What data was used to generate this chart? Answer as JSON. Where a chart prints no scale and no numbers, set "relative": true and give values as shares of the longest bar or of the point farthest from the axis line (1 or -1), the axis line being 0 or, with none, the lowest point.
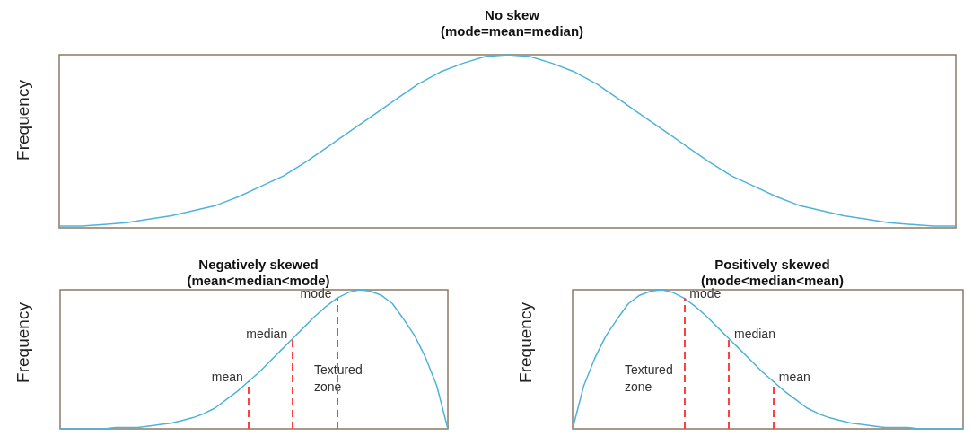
{
  "chart_data": [
    {
      "type": "line",
      "title": "No skew",
      "subtitle": "(mode=mean=median)",
      "ylabel": "Frequency",
      "relative": true,
      "marker": "none",
      "line_style": "solid",
      "categories": [
        null,
        null,
        null,
        null,
        null,
        null,
        null,
        null,
        null,
        null,
        null,
        null,
        null,
        null,
        null,
        null,
        null,
        null,
        null,
        null,
        null,
        null,
        null,
        null,
        null,
        null,
        null,
        null,
        null,
        null,
        null,
        null,
        null,
        null,
        null,
        null,
        null,
        null,
        null,
        null,
        null
      ],
      "series": [
        {
          "color": "#4fb3d9",
          "values": [
            0.01,
            0.01,
            0.02,
            0.03,
            0.05,
            0.07,
            0.1,
            0.13,
            0.18,
            0.24,
            0.3,
            0.38,
            0.47,
            0.56,
            0.65,
            0.74,
            0.83,
            0.9,
            0.95,
            0.99,
            1.0,
            0.99,
            0.95,
            0.9,
            0.83,
            0.74,
            0.65,
            0.56,
            0.47,
            0.38,
            0.3,
            0.24,
            0.18,
            0.13,
            0.1,
            0.07,
            0.05,
            0.03,
            0.02,
            0.01,
            0.01
          ]
        }
      ]
    },
    {
      "type": "line",
      "title": "Negatively skewed",
      "subtitle": "(mean<median<mode)",
      "ylabel": "Frequency",
      "relative": true,
      "marker": "none",
      "line_style": "solid",
      "categories": [
        null,
        null,
        null,
        null,
        null,
        null,
        null,
        null,
        null,
        null,
        null,
        null,
        null,
        null,
        null,
        null,
        null,
        null,
        null,
        null,
        null,
        null,
        null,
        null,
        null,
        null,
        null,
        null,
        null,
        null,
        null,
        null,
        null,
        null,
        null,
        null
      ],
      "series": [
        {
          "color": "#4fb3d9",
          "values": [
            0,
            0,
            0,
            0,
            0,
            0.01,
            0.01,
            0.01,
            0.02,
            0.03,
            0.04,
            0.06,
            0.08,
            0.11,
            0.15,
            0.21,
            0.27,
            0.34,
            0.41,
            0.49,
            0.57,
            0.65,
            0.73,
            0.81,
            0.88,
            0.94,
            0.98,
            1.0,
            0.99,
            0.96,
            0.9,
            0.79,
            0.67,
            0.51,
            0.31,
            0
          ]
        }
      ],
      "annotations": [
        "mean",
        "median",
        "mode",
        "Textured\nzone"
      ]
    },
    {
      "type": "line",
      "title": "Positively skewed",
      "subtitle": "(mode<median<mean)",
      "ylabel": "Frequency",
      "relative": true,
      "marker": "none",
      "line_style": "solid",
      "categories": [
        null,
        null,
        null,
        null,
        null,
        null,
        null,
        null,
        null,
        null,
        null,
        null,
        null,
        null,
        null,
        null,
        null,
        null,
        null,
        null,
        null,
        null,
        null,
        null,
        null,
        null,
        null,
        null,
        null,
        null,
        null,
        null,
        null,
        null,
        null,
        null
      ],
      "series": [
        {
          "color": "#4fb3d9",
          "values": [
            0,
            0.31,
            0.51,
            0.67,
            0.79,
            0.9,
            0.96,
            0.99,
            1.0,
            0.98,
            0.94,
            0.88,
            0.81,
            0.73,
            0.65,
            0.57,
            0.49,
            0.41,
            0.34,
            0.27,
            0.21,
            0.15,
            0.11,
            0.08,
            0.06,
            0.04,
            0.03,
            0.02,
            0.01,
            0.01,
            0.01,
            0,
            0,
            0,
            0,
            0
          ]
        }
      ],
      "annotations": [
        "mode",
        "median",
        "mean",
        "Textured\nzone"
      ]
    }
  ]
}
